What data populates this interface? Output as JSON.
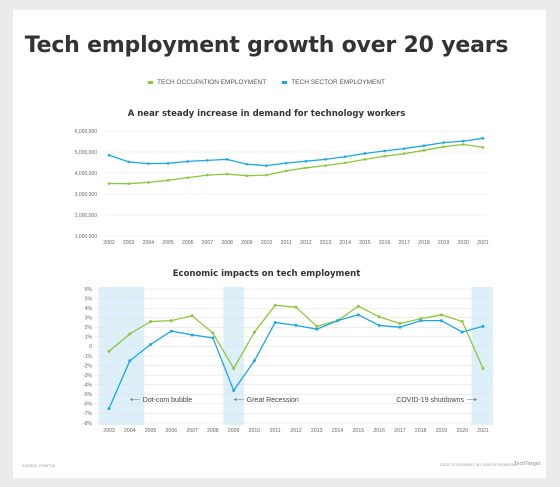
{
  "page": {
    "title": "Tech employment growth over 20 years",
    "footer_left": "SOURCE: COMPTIA",
    "footer_right": "©2022 TECHTARGET. ALL RIGHTS RESERVED.",
    "logo": "TechTarget"
  },
  "colors": {
    "occupation": "#8dc63f",
    "sector": "#1ba7e0",
    "shade": "#ddf0fa"
  },
  "chart_data": [
    {
      "type": "line",
      "title": "A near steady increase in demand for technology workers",
      "legend": [
        "TECH OCCUPATION EMPLOYMENT",
        "TECH SECTOR EMPLOYMENT"
      ],
      "legend_placement": "top-center",
      "grid": true,
      "categories": [
        "2002",
        "2003",
        "2004",
        "2005",
        "2006",
        "2007",
        "2008",
        "2009",
        "2010",
        "2011",
        "2012",
        "2013",
        "2014",
        "2015",
        "2016",
        "2017",
        "2018",
        "2019",
        "2020",
        "2021"
      ],
      "y_ticks": [
        "1,000,000",
        "2,000,000",
        "3,000,000",
        "4,000,000",
        "5,000,000",
        "6,000,000"
      ],
      "ylim": [
        1000000,
        6000000
      ],
      "series": [
        {
          "name": "TECH OCCUPATION EMPLOYMENT",
          "values": [
            3500000,
            3490000,
            3550000,
            3650000,
            3780000,
            3900000,
            3950000,
            3870000,
            3900000,
            4100000,
            4250000,
            4350000,
            4480000,
            4650000,
            4800000,
            4920000,
            5080000,
            5250000,
            5360000,
            5220000
          ]
        },
        {
          "name": "TECH SECTOR EMPLOYMENT",
          "values": [
            4850000,
            4530000,
            4450000,
            4460000,
            4550000,
            4600000,
            4650000,
            4420000,
            4350000,
            4470000,
            4560000,
            4650000,
            4780000,
            4930000,
            5050000,
            5160000,
            5300000,
            5450000,
            5520000,
            5650000
          ]
        }
      ]
    },
    {
      "type": "line",
      "title": "Economic impacts on tech employment",
      "grid": true,
      "categories": [
        "2003",
        "2004",
        "2005",
        "2006",
        "2007",
        "2008",
        "2009",
        "2010",
        "2011",
        "2012",
        "2013",
        "2014",
        "2015",
        "2016",
        "2017",
        "2018",
        "2019",
        "2020",
        "2021"
      ],
      "y_ticks": [
        "-8%",
        "-7%",
        "-6%",
        "-5%",
        "-4%",
        "-3%",
        "-2%",
        "-1%",
        "0",
        "1%",
        "2%",
        "3%",
        "4%",
        "5%",
        "6%"
      ],
      "ylim": [
        -8,
        6
      ],
      "series": [
        {
          "name": "TECH OCCUPATION EMPLOYMENT",
          "values": [
            -0.5,
            1.3,
            2.6,
            2.7,
            3.2,
            1.4,
            -2.3,
            1.5,
            4.3,
            4.1,
            2.1,
            2.7,
            4.2,
            3.1,
            2.4,
            2.9,
            3.3,
            2.6,
            -2.3
          ]
        },
        {
          "name": "TECH SECTOR EMPLOYMENT",
          "values": [
            -6.5,
            -1.5,
            0.2,
            1.6,
            1.2,
            0.9,
            -4.6,
            -1.5,
            2.5,
            2.2,
            1.8,
            2.7,
            3.3,
            2.2,
            2.0,
            2.7,
            2.7,
            1.5,
            2.1
          ]
        }
      ],
      "annotations": [
        {
          "label": "Dot-com bubble",
          "category": "2004"
        },
        {
          "label": "Great Recession",
          "category": "2009"
        },
        {
          "label": "COVID-19 shutdowns",
          "category": "2021"
        }
      ]
    }
  ]
}
